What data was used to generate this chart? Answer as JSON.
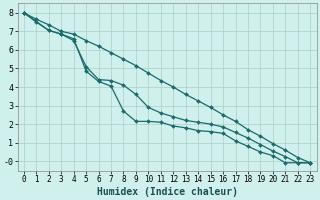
{
  "xlabel": "Humidex (Indice chaleur)",
  "bg_color": "#cff0ec",
  "grid_color": "#b0cdc8",
  "line_color": "#1a6b6b",
  "xlim": [
    -0.5,
    23.5
  ],
  "ylim": [
    -0.5,
    8.5
  ],
  "xticks": [
    0,
    1,
    2,
    3,
    4,
    5,
    6,
    7,
    8,
    9,
    10,
    11,
    12,
    13,
    14,
    15,
    16,
    17,
    18,
    19,
    20,
    21,
    22,
    23
  ],
  "yticks": [
    0,
    1,
    2,
    3,
    4,
    5,
    6,
    7,
    8
  ],
  "ytick_labels": [
    "-0",
    "1",
    "2",
    "3",
    "4",
    "5",
    "6",
    "7",
    "8"
  ],
  "line1_x": [
    0,
    1,
    2,
    3,
    4,
    5,
    6,
    7,
    8,
    9,
    10,
    11,
    12,
    13,
    14,
    15,
    16,
    17,
    18,
    19,
    20,
    21,
    22,
    23
  ],
  "line1_y": [
    8.0,
    7.5,
    7.05,
    6.85,
    6.6,
    4.85,
    4.3,
    4.05,
    2.7,
    2.15,
    2.15,
    2.1,
    1.9,
    1.8,
    1.65,
    1.6,
    1.5,
    1.1,
    0.8,
    0.5,
    0.3,
    -0.08,
    -0.08,
    -0.08
  ],
  "line2_x": [
    0,
    2,
    3,
    4,
    5,
    6,
    7,
    8,
    9,
    10,
    11,
    12,
    13,
    14,
    15,
    16,
    17,
    18,
    19,
    20,
    21,
    22,
    23
  ],
  "line2_y": [
    8.0,
    7.05,
    6.85,
    6.5,
    5.1,
    4.4,
    4.35,
    4.1,
    3.6,
    2.9,
    2.6,
    2.4,
    2.2,
    2.1,
    2.0,
    1.85,
    1.55,
    1.25,
    0.9,
    0.55,
    0.25,
    -0.08,
    -0.08
  ],
  "line3_x": [
    0,
    1,
    2,
    3,
    4,
    5,
    6,
    7,
    8,
    9,
    10,
    11,
    12,
    13,
    14,
    15,
    16,
    17,
    18,
    19,
    20,
    21,
    22,
    23
  ],
  "line3_y": [
    8.0,
    7.65,
    7.35,
    7.0,
    6.85,
    6.5,
    6.2,
    5.85,
    5.5,
    5.15,
    4.75,
    4.35,
    4.0,
    3.6,
    3.25,
    2.9,
    2.5,
    2.15,
    1.7,
    1.35,
    0.95,
    0.6,
    0.2,
    -0.08
  ],
  "xlabel_fontsize": 7,
  "tick_fontsize": 5.5,
  "linewidth": 0.9,
  "markersize": 2.0
}
